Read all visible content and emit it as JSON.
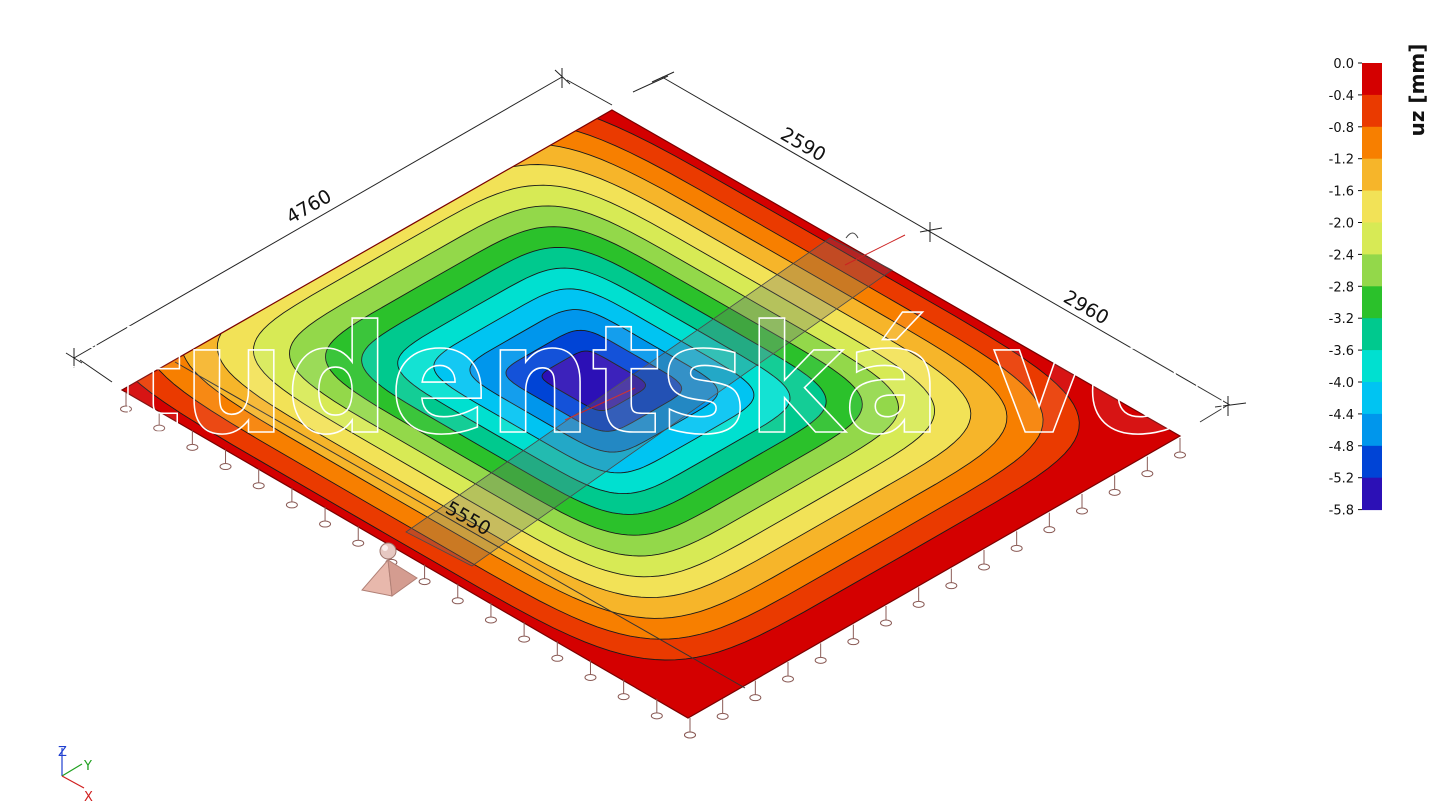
{
  "dimensions": {
    "top_left": "4760",
    "top_right_a": "2590",
    "top_right_b": "2960",
    "bottom": "5550"
  },
  "legend": {
    "unit": "uz [mm]",
    "ticks": [
      "0.0",
      "-0.4",
      "-0.8",
      "-1.2",
      "-1.6",
      "-2.0",
      "-2.4",
      "-2.8",
      "-3.2",
      "-3.6",
      "-4.0",
      "-4.4",
      "-4.8",
      "-5.2",
      "-5.8"
    ],
    "colors": [
      "#d40000",
      "#ea3a00",
      "#f77f00",
      "#f6b52a",
      "#f2e257",
      "#d7ea55",
      "#93d84a",
      "#2bc12b",
      "#00c98e",
      "#00e0d0",
      "#00c4f2",
      "#0096ec",
      "#0044d6",
      "#2c10b6"
    ]
  },
  "watermark": "Studentská verze",
  "axes": {
    "z": "Z",
    "y": "Y",
    "x": "X"
  }
}
